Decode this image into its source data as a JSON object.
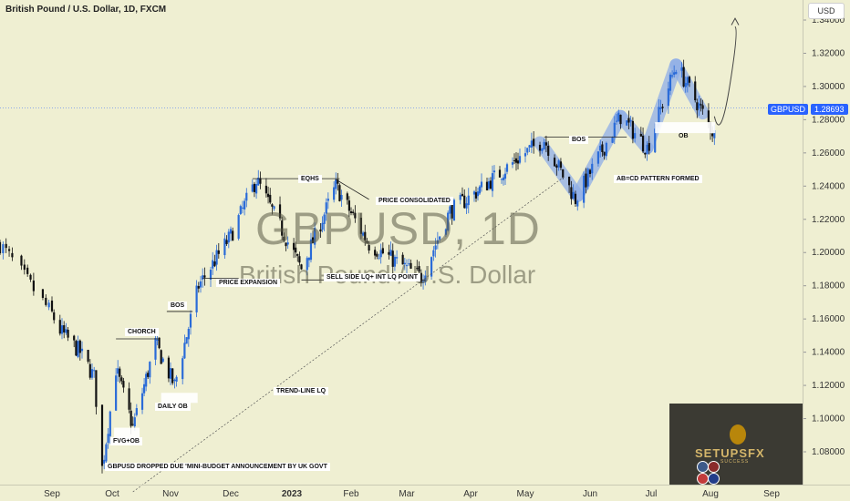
{
  "header": {
    "title": "British Pound / U.S. Dollar, 1D, FXCM"
  },
  "watermark": {
    "symbol": "GBPUSD, 1D",
    "name": "British Pound / U.S. Dollar"
  },
  "price_axis": {
    "currency": "USD"
  },
  "last_price": {
    "symbol": "GBPUSD",
    "value": "1.28693"
  },
  "colors": {
    "background": "#efefd2",
    "bull": "#2a6bd8",
    "bear": "#111111",
    "highlight": "#8faee8",
    "price_tag": "#2962ff",
    "ob_box": "#ffffff"
  },
  "brand": {
    "name": "SETUPSFX",
    "tagline": "SUCCESS",
    "icons": [
      "lightning-icon",
      "globe-icon",
      "us-flag-icon",
      "uk-flag-icon"
    ]
  },
  "annotations": {
    "eqhs": "EQHS",
    "price_consolidated": "PRICE CONSOLIDATED",
    "sell_side": "SELL SIDE LQ+ INT LQ POINT",
    "price_expansion": "PRICE EXPANSION",
    "bos_left": "BOS",
    "chorch": "CHORCH",
    "daily_ob": "DAILY OB",
    "fvg_ob": "FVG+OB",
    "budget": "GBPUSD DROPPED DUE 'MINI-BUDGET ANNOUNCEMENT BY UK GOVT",
    "trend_line": "TREND-LINE LQ",
    "bos_right": "BOS",
    "abcd": "AB=CD PATTERN FORMED",
    "ob": "OB"
  },
  "chart_data": {
    "type": "candlestick",
    "title": "British Pound / U.S. Dollar, 1D, FXCM",
    "symbol": "GBPUSD",
    "timeframe": "1D",
    "source": "FXCM",
    "ylim": [
      1.06,
      1.345
    ],
    "y_ticks": [
      "1.08000",
      "1.10000",
      "1.12000",
      "1.14000",
      "1.16000",
      "1.18000",
      "1.20000",
      "1.22000",
      "1.24000",
      "1.26000",
      "1.28000",
      "1.30000",
      "1.32000",
      "1.34000"
    ],
    "x_ticks": [
      "Sep",
      "Oct",
      "Nov",
      "Dec",
      "2023",
      "Feb",
      "Mar",
      "Apr",
      "May",
      "Jun",
      "Jul",
      "Aug",
      "Sep"
    ],
    "last_value": 1.28693,
    "price_path": [
      {
        "date": "2022-08-15",
        "close": 1.205
      },
      {
        "date": "2022-08-25",
        "close": 1.18
      },
      {
        "date": "2022-09-05",
        "close": 1.153
      },
      {
        "date": "2022-09-15",
        "close": 1.14
      },
      {
        "date": "2022-09-22",
        "close": 1.125
      },
      {
        "date": "2022-09-26",
        "close": 1.07
      },
      {
        "date": "2022-10-03",
        "close": 1.13
      },
      {
        "date": "2022-10-12",
        "close": 1.095
      },
      {
        "date": "2022-10-24",
        "close": 1.145
      },
      {
        "date": "2022-11-03",
        "close": 1.12
      },
      {
        "date": "2022-11-15",
        "close": 1.18
      },
      {
        "date": "2022-12-01",
        "close": 1.21
      },
      {
        "date": "2022-12-14",
        "close": 1.244
      },
      {
        "date": "2023-01-06",
        "close": 1.19
      },
      {
        "date": "2023-01-24",
        "close": 1.24
      },
      {
        "date": "2023-02-10",
        "close": 1.205
      },
      {
        "date": "2023-03-08",
        "close": 1.185
      },
      {
        "date": "2023-03-22",
        "close": 1.225
      },
      {
        "date": "2023-04-14",
        "close": 1.245
      },
      {
        "date": "2023-05-10",
        "close": 1.268
      },
      {
        "date": "2023-05-25",
        "close": 1.232
      },
      {
        "date": "2023-06-16",
        "close": 1.282
      },
      {
        "date": "2023-06-29",
        "close": 1.263
      },
      {
        "date": "2023-07-14",
        "close": 1.313
      },
      {
        "date": "2023-07-28",
        "close": 1.284
      },
      {
        "date": "2023-08-03",
        "close": 1.271
      }
    ]
  }
}
